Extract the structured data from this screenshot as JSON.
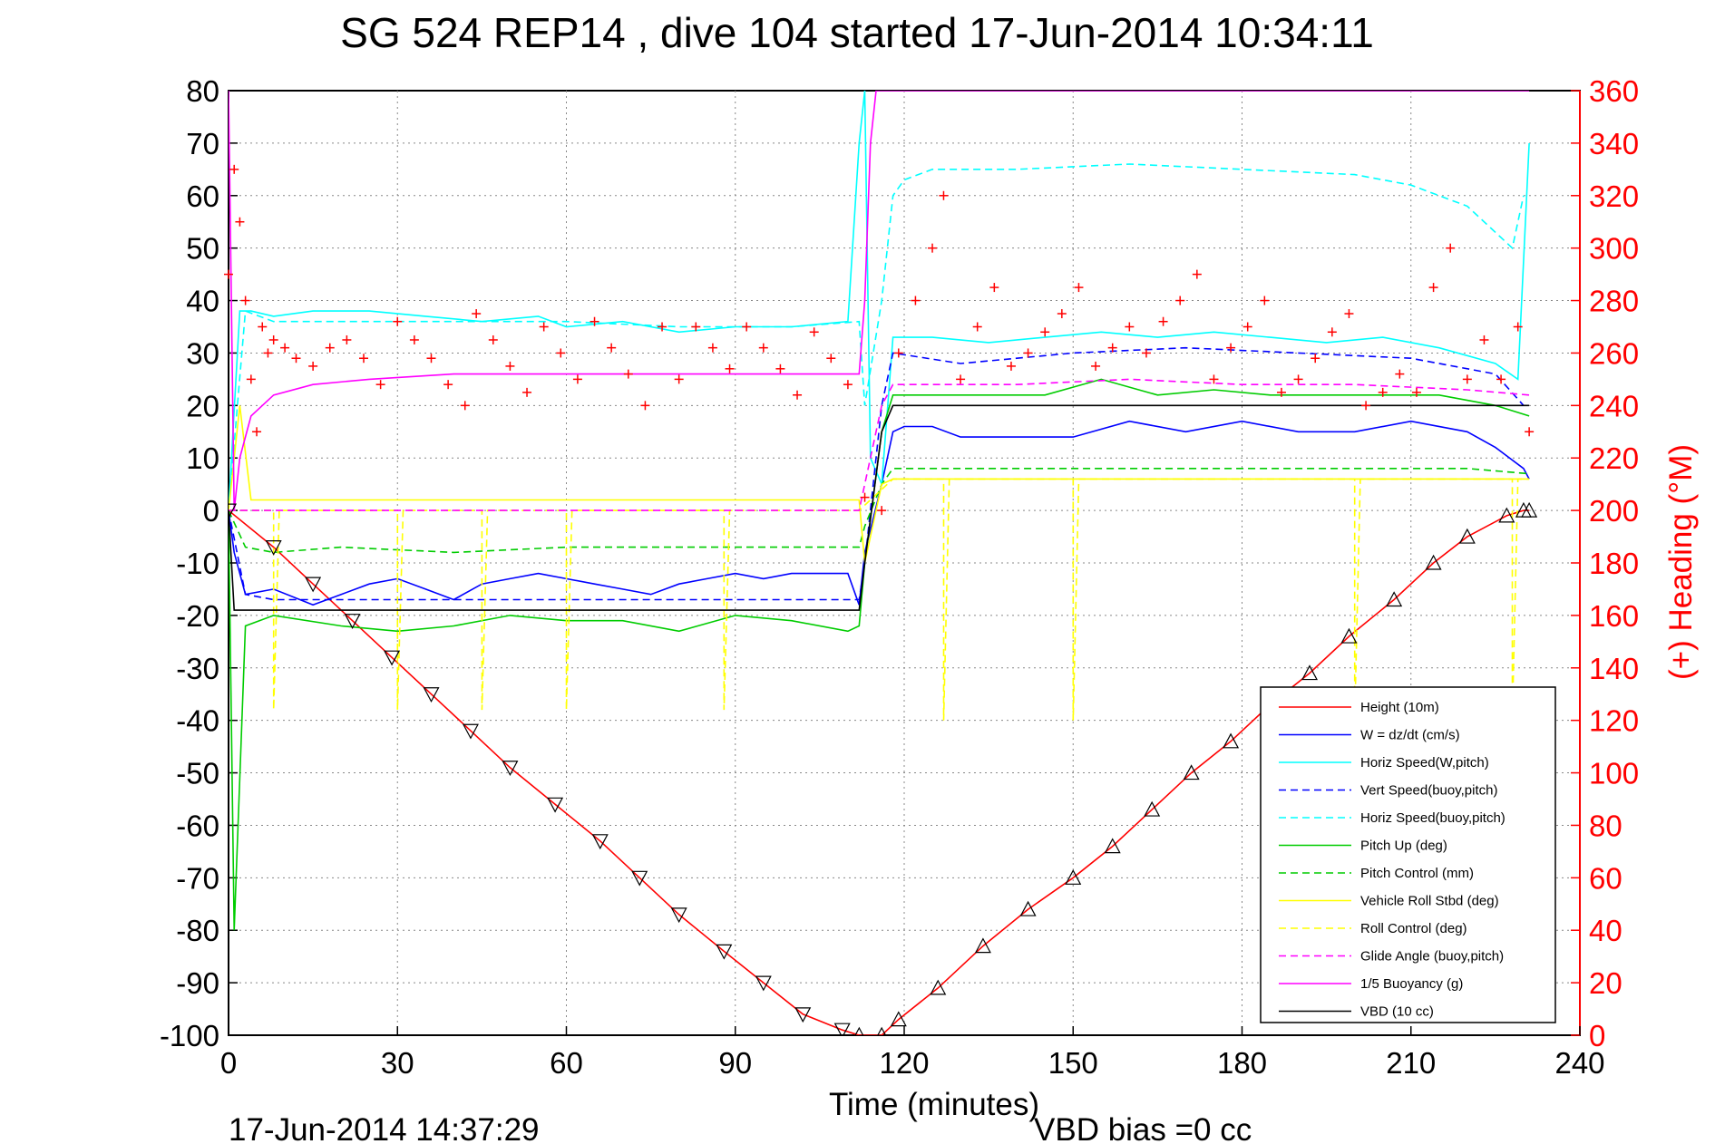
{
  "chart_data": {
    "type": "line",
    "title": "SG 524   REP14  , dive 104 started 17-Jun-2014 10:34:11",
    "xlabel": "Time (minutes)",
    "ylabel_right": "(+) Heading (°M)",
    "footer_left": "17-Jun-2014 14:37:29",
    "footer_right": "VBD bias =0 cc",
    "xlim": [
      0,
      240
    ],
    "ylim_left": [
      -100,
      80
    ],
    "ylim_right": [
      0,
      360
    ],
    "grid": true,
    "legend_position": "bottom-right",
    "x_ticks": [
      "0",
      "30",
      "60",
      "90",
      "120",
      "150",
      "180",
      "210",
      "240"
    ],
    "y_ticks_left": [
      "80",
      "70",
      "60",
      "50",
      "40",
      "30",
      "20",
      "10",
      "0",
      "-10",
      "-20",
      "-30",
      "-40",
      "-50",
      "-60",
      "-70",
      "-80",
      "-90",
      "-100"
    ],
    "y_ticks_right": [
      "360",
      "340",
      "320",
      "300",
      "280",
      "260",
      "240",
      "220",
      "200",
      "180",
      "160",
      "140",
      "120",
      "100",
      "80",
      "60",
      "40",
      "20",
      "0"
    ],
    "series": [
      {
        "name": "Height (10m)",
        "color": "#ff0000",
        "dash": "solid",
        "x": [
          0,
          8,
          15,
          22,
          29,
          36,
          43,
          50,
          58,
          66,
          73,
          80,
          88,
          95,
          102,
          109,
          112,
          116,
          119,
          126,
          134,
          142,
          150,
          157,
          164,
          171,
          178,
          185,
          192,
          199,
          207,
          214,
          220,
          227,
          230,
          231
        ],
        "y": [
          0,
          -7,
          -14,
          -21,
          -28,
          -35,
          -42,
          -49,
          -56,
          -63,
          -70,
          -77,
          -84,
          -90,
          -96,
          -99,
          -100,
          -100,
          -97,
          -91,
          -83,
          -76,
          -70,
          -64,
          -57,
          -50,
          -44,
          -37,
          -31,
          -24,
          -17,
          -10,
          -5,
          -1,
          0,
          0
        ]
      },
      {
        "name": "W = dz/dt (cm/s)",
        "color": "#0000ff",
        "dash": "solid",
        "x": [
          0,
          1,
          3,
          8,
          15,
          20,
          25,
          30,
          35,
          40,
          45,
          50,
          55,
          60,
          65,
          70,
          75,
          80,
          85,
          90,
          95,
          100,
          105,
          110,
          112,
          113,
          116,
          118,
          120,
          125,
          130,
          140,
          150,
          160,
          170,
          180,
          190,
          200,
          210,
          220,
          225,
          230,
          231
        ],
        "y": [
          0,
          -8,
          -16,
          -15,
          -18,
          -16,
          -14,
          -13,
          -15,
          -17,
          -14,
          -13,
          -12,
          -13,
          -14,
          -15,
          -16,
          -14,
          -13,
          -12,
          -13,
          -12,
          -12,
          -12,
          -18,
          -8,
          5,
          15,
          16,
          16,
          14,
          14,
          14,
          17,
          15,
          17,
          15,
          15,
          17,
          15,
          12,
          8,
          6
        ]
      },
      {
        "name": "Horiz Speed(W,pitch)",
        "color": "#00ffff",
        "dash": "solid",
        "x": [
          0,
          2,
          4,
          8,
          15,
          25,
          35,
          45,
          55,
          60,
          70,
          80,
          90,
          100,
          110,
          112,
          113,
          114,
          116,
          118,
          125,
          135,
          145,
          155,
          165,
          175,
          185,
          195,
          205,
          215,
          225,
          229,
          231
        ],
        "y": [
          0,
          38,
          38,
          37,
          38,
          38,
          37,
          36,
          37,
          35,
          36,
          34,
          35,
          35,
          36,
          70,
          80,
          10,
          5,
          33,
          33,
          32,
          33,
          34,
          33,
          34,
          33,
          32,
          33,
          31,
          28,
          25,
          70
        ]
      },
      {
        "name": "Vert Speed(buoy,pitch)",
        "color": "#0000ff",
        "dash": "dashed",
        "x": [
          0,
          3,
          8,
          20,
          40,
          60,
          80,
          100,
          112,
          113,
          116,
          118,
          130,
          150,
          170,
          190,
          210,
          225,
          230
        ],
        "y": [
          0,
          -16,
          -17,
          -17,
          -17,
          -17,
          -17,
          -17,
          -17,
          -10,
          20,
          30,
          28,
          30,
          31,
          30,
          29,
          26,
          20
        ]
      },
      {
        "name": "Horiz Speed(buoy,pitch)",
        "color": "#00ffff",
        "dash": "dashed",
        "x": [
          0,
          3,
          8,
          20,
          40,
          60,
          80,
          100,
          112,
          113,
          116,
          118,
          120,
          125,
          140,
          160,
          180,
          200,
          210,
          220,
          226,
          228,
          230
        ],
        "y": [
          0,
          38,
          36,
          36,
          36,
          36,
          35,
          35,
          36,
          20,
          40,
          60,
          63,
          65,
          65,
          66,
          65,
          64,
          62,
          58,
          52,
          50,
          60
        ]
      },
      {
        "name": "Pitch Up (deg)",
        "color": "#00cc00",
        "dash": "solid",
        "x": [
          0,
          1,
          3,
          8,
          20,
          30,
          40,
          50,
          60,
          70,
          80,
          90,
          100,
          110,
          112,
          113,
          116,
          118,
          125,
          135,
          145,
          155,
          165,
          175,
          185,
          195,
          205,
          215,
          225,
          231
        ],
        "y": [
          0,
          -80,
          -22,
          -20,
          -22,
          -23,
          -22,
          -20,
          -21,
          -21,
          -23,
          -20,
          -21,
          -23,
          -22,
          -10,
          15,
          22,
          22,
          22,
          22,
          25,
          22,
          23,
          22,
          22,
          22,
          22,
          20,
          18
        ]
      },
      {
        "name": "Pitch Control (mm)",
        "color": "#00cc00",
        "dash": "dashed",
        "x": [
          0,
          3,
          8,
          20,
          40,
          60,
          80,
          100,
          112,
          113,
          116,
          118,
          140,
          160,
          180,
          200,
          220,
          231
        ],
        "y": [
          0,
          -7,
          -8,
          -7,
          -8,
          -7,
          -7,
          -7,
          -7,
          -3,
          5,
          8,
          8,
          8,
          8,
          8,
          8,
          7
        ]
      },
      {
        "name": "Vehicle Roll Stbd (deg)",
        "color": "#ffff00",
        "dash": "solid",
        "x": [
          0,
          2,
          4,
          8,
          20,
          40,
          60,
          80,
          100,
          112,
          113,
          116,
          118,
          140,
          160,
          180,
          200,
          220,
          231
        ],
        "y": [
          0,
          20,
          2,
          2,
          2,
          2,
          2,
          2,
          2,
          2,
          -10,
          5,
          6,
          6,
          6,
          6,
          6,
          6,
          6
        ]
      },
      {
        "name": "Roll Control (deg)",
        "color": "#ffff00",
        "dash": "dashed",
        "x": [
          0,
          8,
          8,
          9,
          30,
          30,
          31,
          45,
          45,
          46,
          60,
          60,
          61,
          88,
          88,
          89,
          112,
          118,
          127,
          127,
          128,
          150,
          150,
          151,
          200,
          200,
          201,
          228,
          228,
          229,
          231
        ],
        "y": [
          0,
          0,
          -38,
          0,
          0,
          -38,
          0,
          0,
          -38,
          0,
          0,
          -38,
          0,
          0,
          -38,
          0,
          0,
          6,
          6,
          -40,
          6,
          6,
          -40,
          6,
          6,
          -40,
          6,
          6,
          -40,
          6,
          6
        ]
      },
      {
        "name": "Glide Angle (buoy,pitch)",
        "color": "#ff00ff",
        "dash": "dashed",
        "x": [
          0,
          3,
          8,
          40,
          80,
          112,
          113,
          116,
          118,
          140,
          160,
          180,
          200,
          220,
          231
        ],
        "y": [
          0,
          0,
          0,
          0,
          0,
          0,
          5,
          20,
          24,
          24,
          25,
          24,
          24,
          23,
          22
        ]
      },
      {
        "name": "1/5 Buoyancy (g)",
        "color": "#ff00ff",
        "dash": "solid",
        "x": [
          0,
          1,
          2,
          4,
          8,
          15,
          25,
          40,
          60,
          80,
          100,
          112,
          113,
          114,
          115,
          116,
          118,
          130,
          231
        ],
        "y": [
          80,
          0,
          10,
          18,
          22,
          24,
          25,
          26,
          26,
          26,
          26,
          26,
          40,
          70,
          80,
          80,
          80,
          80,
          80
        ]
      },
      {
        "name": "VBD (10 cc)",
        "color": "#000000",
        "dash": "solid",
        "x": [
          0,
          1,
          3,
          112,
          113,
          116,
          118,
          231
        ],
        "y": [
          0,
          -19,
          -19,
          -19,
          -10,
          15,
          20,
          20
        ]
      }
    ],
    "heading_series": {
      "name": "Heading",
      "color": "#ff0000",
      "marker": "+",
      "axis": "right",
      "x": [
        0,
        1,
        2,
        3,
        4,
        5,
        6,
        7,
        8,
        10,
        12,
        15,
        18,
        21,
        24,
        27,
        30,
        33,
        36,
        39,
        42,
        44,
        47,
        50,
        53,
        56,
        59,
        62,
        65,
        68,
        71,
        74,
        77,
        80,
        83,
        86,
        89,
        92,
        95,
        98,
        101,
        104,
        107,
        110,
        113,
        116,
        119,
        122,
        125,
        127,
        130,
        133,
        136,
        139,
        142,
        145,
        148,
        151,
        154,
        157,
        160,
        163,
        166,
        169,
        172,
        175,
        178,
        181,
        184,
        187,
        190,
        193,
        196,
        199,
        202,
        205,
        208,
        211,
        214,
        217,
        220,
        223,
        226,
        229,
        231
      ],
      "y": [
        290,
        330,
        310,
        280,
        250,
        230,
        270,
        260,
        265,
        262,
        258,
        255,
        262,
        265,
        258,
        248,
        272,
        265,
        258,
        248,
        240,
        275,
        265,
        255,
        245,
        270,
        260,
        250,
        272,
        262,
        252,
        240,
        270,
        250,
        270,
        262,
        254,
        270,
        262,
        254,
        244,
        268,
        258,
        248,
        205,
        200,
        260,
        280,
        300,
        320,
        250,
        270,
        285,
        255,
        260,
        268,
        275,
        285,
        255,
        262,
        270,
        260,
        272,
        280,
        290,
        250,
        262,
        270,
        280,
        245,
        250,
        258,
        268,
        275,
        240,
        245,
        252,
        245,
        285,
        300,
        250,
        265,
        250,
        270,
        230
      ]
    }
  }
}
